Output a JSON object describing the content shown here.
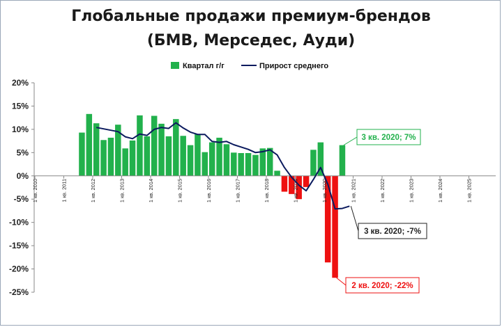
{
  "chart_data": {
    "type": "bar",
    "title_lines": [
      "Глобальные продажи премиум-брендов",
      "(БМВ, Мерседес, Ауди)"
    ],
    "ylim": [
      -0.25,
      0.2
    ],
    "yticks": [
      {
        "v": 0.2,
        "label": "20%"
      },
      {
        "v": 0.15,
        "label": "15%"
      },
      {
        "v": 0.1,
        "label": "10%"
      },
      {
        "v": 0.05,
        "label": "5%"
      },
      {
        "v": 0.0,
        "label": "0%"
      },
      {
        "v": -0.05,
        "label": "-5%"
      },
      {
        "v": -0.1,
        "label": "-10%"
      },
      {
        "v": -0.15,
        "label": "-15%"
      },
      {
        "v": -0.2,
        "label": "-20%"
      },
      {
        "v": -0.25,
        "label": "-25%"
      }
    ],
    "xticks": [
      {
        "year": 2010,
        "label": "1 кв. 2010"
      },
      {
        "year": 2011,
        "label": "1 кв. 2011"
      },
      {
        "year": 2012,
        "label": "1 кв. 2012"
      },
      {
        "year": 2013,
        "label": "1 кв. 2013"
      },
      {
        "year": 2014,
        "label": "1 кв. 2014"
      },
      {
        "year": 2015,
        "label": "1 кв. 2015"
      },
      {
        "year": 2016,
        "label": "1 кв. 2016"
      },
      {
        "year": 2017,
        "label": "1 кв. 2017"
      },
      {
        "year": 2018,
        "label": "1 кв. 2018"
      },
      {
        "year": 2019,
        "label": "1 кв. 2019"
      },
      {
        "year": 2020,
        "label": "1 кв. 2020"
      },
      {
        "year": 2021,
        "label": "1 кв. 2021"
      },
      {
        "year": 2022,
        "label": "1 кв. 2022"
      },
      {
        "year": 2023,
        "label": "1 кв. 2023"
      },
      {
        "year": 2024,
        "label": "1 кв. 2024"
      },
      {
        "year": 2025,
        "label": "1 кв. 2025"
      }
    ],
    "legend": {
      "placement": "top-center"
    },
    "series": [
      {
        "name": "Квартал г/г",
        "kind": "bar",
        "color_pos": "#22b14c",
        "color_neg": "#ee1111",
        "points": [
          {
            "q": "2011-Q3",
            "v": 0.093
          },
          {
            "q": "2011-Q4",
            "v": 0.133
          },
          {
            "q": "2012-Q1",
            "v": 0.113
          },
          {
            "q": "2012-Q2",
            "v": 0.077
          },
          {
            "q": "2012-Q3",
            "v": 0.082
          },
          {
            "q": "2012-Q4",
            "v": 0.11
          },
          {
            "q": "2013-Q1",
            "v": 0.059
          },
          {
            "q": "2013-Q2",
            "v": 0.076
          },
          {
            "q": "2013-Q3",
            "v": 0.13
          },
          {
            "q": "2013-Q4",
            "v": 0.085
          },
          {
            "q": "2014-Q1",
            "v": 0.129
          },
          {
            "q": "2014-Q2",
            "v": 0.112
          },
          {
            "q": "2014-Q3",
            "v": 0.085
          },
          {
            "q": "2014-Q4",
            "v": 0.122
          },
          {
            "q": "2015-Q1",
            "v": 0.086
          },
          {
            "q": "2015-Q2",
            "v": 0.066
          },
          {
            "q": "2015-Q3",
            "v": 0.09
          },
          {
            "q": "2015-Q4",
            "v": 0.051
          },
          {
            "q": "2016-Q1",
            "v": 0.072
          },
          {
            "q": "2016-Q2",
            "v": 0.082
          },
          {
            "q": "2016-Q3",
            "v": 0.068
          },
          {
            "q": "2016-Q4",
            "v": 0.05
          },
          {
            "q": "2017-Q1",
            "v": 0.049
          },
          {
            "q": "2017-Q2",
            "v": 0.049
          },
          {
            "q": "2017-Q3",
            "v": 0.045
          },
          {
            "q": "2017-Q4",
            "v": 0.059
          },
          {
            "q": "2018-Q1",
            "v": 0.06
          },
          {
            "q": "2018-Q2",
            "v": 0.011
          },
          {
            "q": "2018-Q3",
            "v": -0.034
          },
          {
            "q": "2018-Q4",
            "v": -0.039
          },
          {
            "q": "2019-Q1",
            "v": -0.05
          },
          {
            "q": "2019-Q2",
            "v": -0.024
          },
          {
            "q": "2019-Q3",
            "v": 0.056
          },
          {
            "q": "2019-Q4",
            "v": 0.072
          },
          {
            "q": "2020-Q1",
            "v": -0.186
          },
          {
            "q": "2020-Q2",
            "v": -0.219
          },
          {
            "q": "2020-Q3",
            "v": 0.066
          }
        ]
      },
      {
        "name": "Прирост среднего",
        "kind": "line",
        "color": "#0b1a5e",
        "points": [
          {
            "q": "2012-Q1",
            "v": 0.104
          },
          {
            "q": "2012-Q2",
            "v": 0.101
          },
          {
            "q": "2012-Q3",
            "v": 0.098
          },
          {
            "q": "2012-Q4",
            "v": 0.095
          },
          {
            "q": "2013-Q1",
            "v": 0.084
          },
          {
            "q": "2013-Q2",
            "v": 0.08
          },
          {
            "q": "2013-Q3",
            "v": 0.09
          },
          {
            "q": "2013-Q4",
            "v": 0.087
          },
          {
            "q": "2014-Q1",
            "v": 0.1
          },
          {
            "q": "2014-Q2",
            "v": 0.104
          },
          {
            "q": "2014-Q3",
            "v": 0.102
          },
          {
            "q": "2014-Q4",
            "v": 0.114
          },
          {
            "q": "2015-Q1",
            "v": 0.103
          },
          {
            "q": "2015-Q2",
            "v": 0.094
          },
          {
            "q": "2015-Q3",
            "v": 0.089
          },
          {
            "q": "2015-Q4",
            "v": 0.089
          },
          {
            "q": "2016-Q1",
            "v": 0.074
          },
          {
            "q": "2016-Q2",
            "v": 0.072
          },
          {
            "q": "2016-Q3",
            "v": 0.074
          },
          {
            "q": "2016-Q4",
            "v": 0.067
          },
          {
            "q": "2017-Q1",
            "v": 0.062
          },
          {
            "q": "2017-Q2",
            "v": 0.057
          },
          {
            "q": "2017-Q3",
            "v": 0.05
          },
          {
            "q": "2017-Q4",
            "v": 0.052
          },
          {
            "q": "2018-Q1",
            "v": 0.056
          },
          {
            "q": "2018-Q2",
            "v": 0.045
          },
          {
            "q": "2018-Q3",
            "v": 0.018
          },
          {
            "q": "2018-Q4",
            "v": -0.003
          },
          {
            "q": "2019-Q1",
            "v": -0.02
          },
          {
            "q": "2019-Q2",
            "v": -0.032
          },
          {
            "q": "2019-Q3",
            "v": -0.008
          },
          {
            "q": "2019-Q4",
            "v": 0.018
          },
          {
            "q": "2020-Q1",
            "v": -0.018
          },
          {
            "q": "2020-Q2",
            "v": -0.071
          },
          {
            "q": "2020-Q3",
            "v": -0.07
          },
          {
            "q": "2020-Q4",
            "v": -0.065
          }
        ]
      }
    ],
    "annotations": [
      {
        "text": "3 кв. 2020; 7%",
        "q": "2020-Q3",
        "v": 0.066,
        "color": "#22b14c"
      },
      {
        "text": "3 кв. 2020; -7%",
        "q": "2020-Q4",
        "v": -0.065,
        "color": "#222222"
      },
      {
        "text": "2 кв. 2020; -22%",
        "q": "2020-Q2",
        "v": -0.219,
        "color": "#ee1111"
      }
    ]
  }
}
